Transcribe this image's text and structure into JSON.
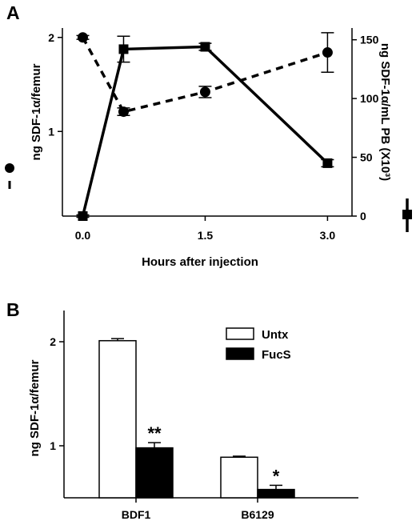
{
  "chart_data": [
    {
      "panel_label": "A",
      "type": "line",
      "xlabel": "Hours after injection",
      "x_ticks": [
        "0.0",
        "1.5",
        "3.0"
      ],
      "xlim": [
        -0.25,
        3.3
      ],
      "left_axis": {
        "label": "ng SDF-1α/femur",
        "ylim": [
          0.1,
          2.1
        ],
        "ticks": [
          {
            "value": 1,
            "label": "1"
          },
          {
            "value": 2,
            "label": "2"
          }
        ]
      },
      "right_axis": {
        "label": "ng SDF-1α/mL PB (X10³)",
        "ylim": [
          0,
          160
        ],
        "ticks": [
          {
            "value": 0,
            "label": "0"
          },
          {
            "value": 50,
            "label": "50"
          },
          {
            "value": 100,
            "label": "100"
          },
          {
            "value": 150,
            "label": "150"
          }
        ]
      },
      "series": [
        {
          "axis": "left",
          "style": "dashed",
          "marker": "circle",
          "x": [
            0.0,
            0.5,
            1.5,
            3.0
          ],
          "y": [
            2.0,
            1.21,
            1.42,
            1.84
          ],
          "err": [
            0.02,
            0.04,
            0.06,
            0.21
          ]
        },
        {
          "axis": "right",
          "style": "solid",
          "marker": "square",
          "x": [
            0.0,
            0.5,
            1.5,
            3.0
          ],
          "y": [
            0,
            142,
            144,
            45
          ],
          "err": [
            1,
            11,
            3,
            3
          ]
        }
      ]
    },
    {
      "panel_label": "B",
      "type": "bar",
      "ylabel": "ng SDF-1α/femur",
      "ylim": [
        0.5,
        2.3
      ],
      "y_ticks": [
        {
          "value": 1,
          "label": "1"
        },
        {
          "value": 2,
          "label": "2"
        }
      ],
      "categories": [
        "BDF1",
        "B6129"
      ],
      "series": [
        {
          "name": "Untx",
          "fill": "#ffffff",
          "values": [
            2.01,
            0.89
          ],
          "err": [
            0.02,
            0.01
          ]
        },
        {
          "name": "FucS",
          "fill": "#000000",
          "values": [
            0.98,
            0.58
          ],
          "err": [
            0.05,
            0.04
          ]
        }
      ],
      "significance": [
        "**",
        "*"
      ]
    }
  ]
}
